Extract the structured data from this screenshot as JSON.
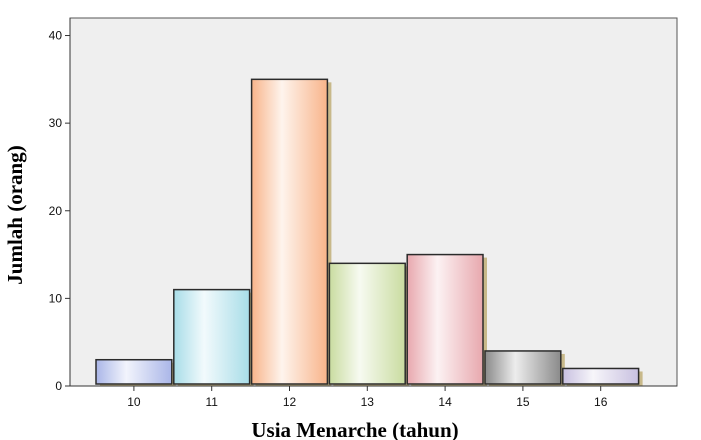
{
  "chart_data": {
    "type": "bar",
    "title": "",
    "xlabel": "Usia Menarche (tahun)",
    "ylabel": "Jumlah (orang)",
    "categories": [
      "10",
      "11",
      "12",
      "13",
      "14",
      "15",
      "16"
    ],
    "values": [
      3,
      11,
      35,
      14,
      15,
      4,
      2
    ],
    "ylim": [
      0,
      42
    ],
    "yticks": [
      0,
      10,
      20,
      30,
      40
    ],
    "grid": false,
    "legend": "none",
    "colors": {
      "plot_background": "#efefef",
      "bar_border": "#2b2b2b",
      "shadow": "#c8b98a",
      "bars": [
        "#aab6e8",
        "#a8dde8",
        "#f8b48a",
        "#c9dca0",
        "#e8a8ae",
        "#8a8a8a",
        "#c8c0e0"
      ]
    }
  }
}
